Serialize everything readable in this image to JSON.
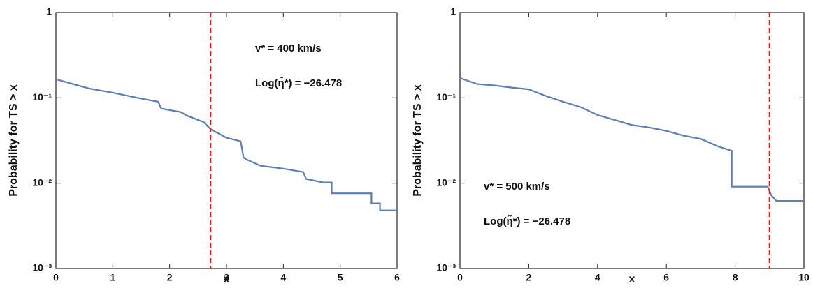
{
  "chart_data": [
    {
      "type": "line",
      "step": true,
      "log_y": true,
      "xlabel": "x",
      "ylabel": "Probability for TS > x",
      "x": [
        0,
        0.3,
        0.6,
        1.0,
        1.5,
        1.8,
        1.85,
        2.2,
        2.3,
        2.6,
        2.72,
        3.0,
        3.25,
        3.3,
        3.35,
        3.6,
        4.0,
        4.35,
        4.4,
        4.7,
        4.85,
        4.85,
        5.55,
        5.55,
        5.7,
        5.7,
        6
      ],
      "values": [
        0.165,
        0.145,
        0.128,
        0.115,
        0.098,
        0.09,
        0.075,
        0.068,
        0.062,
        0.052,
        0.043,
        0.034,
        0.031,
        0.02,
        0.019,
        0.016,
        0.0148,
        0.0135,
        0.0112,
        0.0102,
        0.0102,
        0.0076,
        0.0076,
        0.0058,
        0.0058,
        0.0048,
        0.0048
      ],
      "color": "#5b7fb2",
      "xlim": [
        0,
        6
      ],
      "xticks": [
        0,
        1,
        2,
        3,
        4,
        5,
        6
      ],
      "ylim": [
        0.001,
        1
      ],
      "yticks": [
        1,
        {
          "value": 0.1,
          "label": "10⁻¹"
        },
        {
          "value": 0.01,
          "label": "10⁻²"
        },
        {
          "value": 0.001,
          "label": "10⁻³"
        }
      ],
      "vline": 2.72,
      "vline_color": "#e41a1c",
      "annotations": [
        "v* = 400 km/s",
        "Log(η̃*) = −26.478"
      ]
    },
    {
      "type": "line",
      "step": true,
      "log_y": true,
      "xlabel": "x",
      "ylabel": "Probability for TS > x",
      "x": [
        0,
        0.5,
        1,
        1.5,
        2,
        2.5,
        3,
        3.5,
        4,
        4.5,
        5,
        5.5,
        6,
        6.5,
        7,
        7.5,
        7.9,
        7.9,
        8.95,
        9.05,
        9.2,
        10
      ],
      "values": [
        0.17,
        0.145,
        0.14,
        0.132,
        0.126,
        0.105,
        0.09,
        0.078,
        0.063,
        0.055,
        0.048,
        0.045,
        0.041,
        0.036,
        0.033,
        0.027,
        0.024,
        0.0091,
        0.0091,
        0.0072,
        0.0062,
        0.0062
      ],
      "color": "#5b7fb2",
      "xlim": [
        0,
        10
      ],
      "xticks": [
        0,
        2,
        4,
        6,
        8,
        10
      ],
      "ylim": [
        0.001,
        1
      ],
      "yticks": [
        1,
        {
          "value": 0.1,
          "label": "10⁻¹"
        },
        {
          "value": 0.01,
          "label": "10⁻²"
        },
        {
          "value": 0.001,
          "label": "10⁻³"
        }
      ],
      "vline": 9.0,
      "vline_color": "#e41a1c",
      "annotations": [
        "v* = 500 km/s",
        "Log(η̃*) = −26.478"
      ]
    }
  ]
}
